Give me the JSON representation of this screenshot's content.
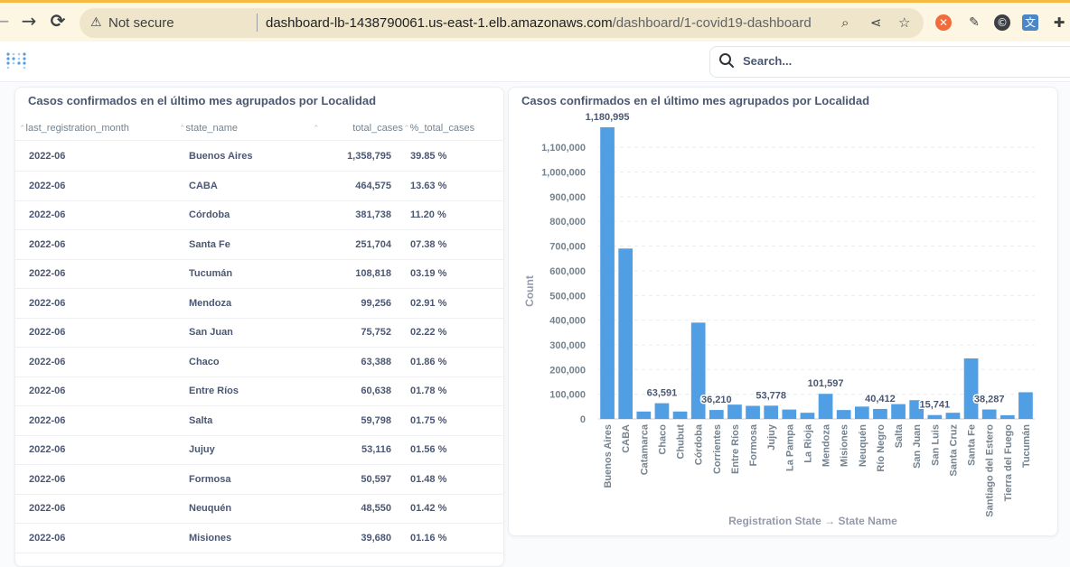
{
  "browser": {
    "back": "←",
    "forward": "→",
    "reload": "⟳",
    "security_label": "Not secure",
    "url_host": "dashboard-lb-1438790061.us-east-1.elb.amazonaws.com",
    "url_path": "/dashboard/1-covid19-dashboard"
  },
  "header": {
    "search_placeholder": "Search..."
  },
  "table_card": {
    "title": "Casos confirmados en el último mes agrupados por Localidad",
    "columns": [
      "last_registration_month",
      "state_name",
      "total_cases",
      "%_total_cases"
    ],
    "rows": [
      [
        "2022-06",
        "Buenos Aires",
        "1,358,795",
        "39.85 %"
      ],
      [
        "2022-06",
        "CABA",
        "464,575",
        "13.63 %"
      ],
      [
        "2022-06",
        "Córdoba",
        "381,738",
        "11.20 %"
      ],
      [
        "2022-06",
        "Santa Fe",
        "251,704",
        "07.38 %"
      ],
      [
        "2022-06",
        "Tucumán",
        "108,818",
        "03.19 %"
      ],
      [
        "2022-06",
        "Mendoza",
        "99,256",
        "02.91 %"
      ],
      [
        "2022-06",
        "San Juan",
        "75,752",
        "02.22 %"
      ],
      [
        "2022-06",
        "Chaco",
        "63,388",
        "01.86 %"
      ],
      [
        "2022-06",
        "Entre Ríos",
        "60,638",
        "01.78 %"
      ],
      [
        "2022-06",
        "Salta",
        "59,798",
        "01.75 %"
      ],
      [
        "2022-06",
        "Jujuy",
        "53,116",
        "01.56 %"
      ],
      [
        "2022-06",
        "Formosa",
        "50,597",
        "01.48 %"
      ],
      [
        "2022-06",
        "Neuquén",
        "48,550",
        "01.42 %"
      ],
      [
        "2022-06",
        "Misiones",
        "39,680",
        "01.16 %"
      ]
    ]
  },
  "chart_card": {
    "title": "Casos confirmados en el último mes agrupados por Localidad"
  },
  "chart_data": {
    "type": "bar",
    "title": "Casos confirmados en el último mes agrupados por Localidad",
    "xlabel": "Registration State → State Name",
    "ylabel": "Count",
    "ylim": [
      0,
      1180995
    ],
    "yticks": [
      0,
      100000,
      200000,
      300000,
      400000,
      500000,
      600000,
      700000,
      800000,
      900000,
      1000000,
      1100000
    ],
    "ytick_labels": [
      "0",
      "100,000",
      "200,000",
      "300,000",
      "400,000",
      "500,000",
      "600,000",
      "700,000",
      "800,000",
      "900,000",
      "1,000,000",
      "1,100,000"
    ],
    "grid": true,
    "color": "#509ee3",
    "categories": [
      "Buenos Aires",
      "CABA",
      "Catamarca",
      "Chaco",
      "Chubut",
      "Córdoba",
      "Corrientes",
      "Entre Ríos",
      "Formosa",
      "Jujuy",
      "La Pampa",
      "La Rioja",
      "Mendoza",
      "Misiones",
      "Neuquén",
      "Río Negro",
      "Salta",
      "San Juan",
      "San Luis",
      "Santa Cruz",
      "Santa Fe",
      "Santiago del Estero",
      "Tierra del Fuego",
      "Tucumán"
    ],
    "values": [
      1180995,
      690000,
      30000,
      63591,
      30000,
      390000,
      36210,
      58000,
      53000,
      53778,
      38000,
      25000,
      101597,
      36000,
      50000,
      40412,
      60000,
      76000,
      15741,
      25000,
      245000,
      38287,
      15000,
      108000
    ],
    "data_labels": [
      {
        "index": 0,
        "label": "1,180,995"
      },
      {
        "index": 3,
        "label": "63,591"
      },
      {
        "index": 6,
        "label": "36,210"
      },
      {
        "index": 9,
        "label": "53,778"
      },
      {
        "index": 12,
        "label": "101,597"
      },
      {
        "index": 15,
        "label": "40,412"
      },
      {
        "index": 18,
        "label": "15,741"
      },
      {
        "index": 21,
        "label": "38,287"
      }
    ]
  }
}
